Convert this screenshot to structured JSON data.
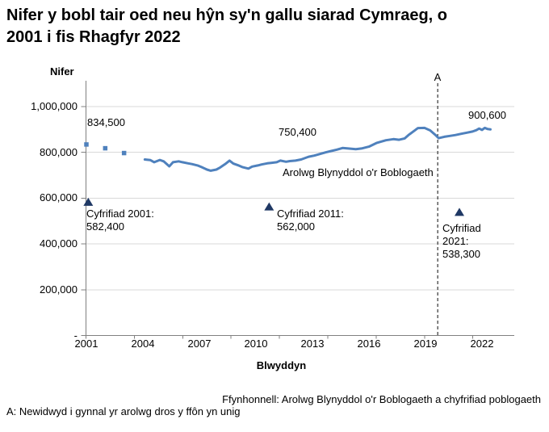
{
  "header": {
    "title_line1": "Nifer y bobl tair oed neu hŷn sy'n gallu siarad Cymraeg, o",
    "title_line2": "2001 i fis Rhagfyr 2022"
  },
  "chart_data": {
    "type": "line",
    "title": "Nifer y bobl tair oed neu hŷn sy'n gallu siarad Cymraeg, o 2001 i fis Rhagfyr 2022",
    "ylabel": "Nifer",
    "xlabel": "Blwyddyn",
    "grid": "horizontal",
    "legend_position": "none",
    "ylim": [
      0,
      1000000
    ],
    "xlim_years": [
      2001,
      2023
    ],
    "y_ticks": [
      {
        "value": 1000000,
        "label": "1,000,000"
      },
      {
        "value": 800000,
        "label": "800,000"
      },
      {
        "value": 600000,
        "label": "600,000"
      },
      {
        "value": 400000,
        "label": "400,000"
      },
      {
        "value": 200000,
        "label": "200,000"
      },
      {
        "value": 0,
        "label": "-"
      }
    ],
    "x_tick_labels": [
      "2001",
      "2004",
      "2007",
      "2010",
      "2013",
      "2016",
      "2019",
      "2022"
    ],
    "series": [
      {
        "name": "Arolwg Blynyddol o'r Boblogaeth",
        "color": "#4f81bd",
        "points": [
          [
            2004.6,
            769000
          ],
          [
            2004.9,
            766000
          ],
          [
            2005.1,
            757000
          ],
          [
            2005.4,
            767000
          ],
          [
            2005.6,
            761000
          ],
          [
            2005.9,
            739000
          ],
          [
            2006.1,
            757000
          ],
          [
            2006.4,
            761000
          ],
          [
            2006.6,
            757000
          ],
          [
            2006.9,
            752000
          ],
          [
            2007.1,
            749000
          ],
          [
            2007.4,
            743000
          ],
          [
            2007.6,
            736000
          ],
          [
            2007.9,
            725000
          ],
          [
            2008.1,
            720000
          ],
          [
            2008.4,
            725000
          ],
          [
            2008.6,
            734000
          ],
          [
            2008.9,
            751000
          ],
          [
            2009.1,
            764000
          ],
          [
            2009.3,
            751000
          ],
          [
            2009.6,
            742000
          ],
          [
            2009.8,
            735000
          ],
          [
            2010.1,
            729000
          ],
          [
            2010.3,
            738000
          ],
          [
            2010.6,
            743000
          ],
          [
            2010.8,
            747000
          ],
          [
            2011.1,
            752000
          ],
          [
            2011.3,
            754000
          ],
          [
            2011.6,
            757000
          ],
          [
            2011.8,
            764000
          ],
          [
            2012.1,
            759000
          ],
          [
            2012.3,
            762000
          ],
          [
            2012.6,
            764000
          ],
          [
            2012.9,
            769000
          ],
          [
            2013.3,
            781000
          ],
          [
            2013.6,
            786000
          ],
          [
            2013.9,
            793000
          ],
          [
            2014.2,
            800000
          ],
          [
            2014.5,
            806000
          ],
          [
            2014.8,
            812000
          ],
          [
            2015.1,
            819000
          ],
          [
            2015.4,
            817000
          ],
          [
            2015.8,
            814000
          ],
          [
            2016.1,
            817000
          ],
          [
            2016.5,
            825000
          ],
          [
            2016.9,
            841000
          ],
          [
            2017.4,
            853000
          ],
          [
            2017.8,
            858000
          ],
          [
            2018.1,
            855000
          ],
          [
            2018.4,
            861000
          ],
          [
            2018.6,
            876000
          ],
          [
            2018.9,
            894000
          ],
          [
            2019.1,
            906000
          ],
          [
            2019.45,
            907000
          ],
          [
            2019.75,
            896000
          ],
          [
            2020.0,
            878000
          ],
          [
            2020.2,
            862000
          ],
          [
            2020.5,
            868000
          ],
          [
            2020.8,
            872000
          ],
          [
            2021.1,
            876000
          ],
          [
            2021.4,
            881000
          ],
          [
            2021.7,
            886000
          ],
          [
            2022.0,
            891000
          ],
          [
            2022.2,
            897000
          ],
          [
            2022.35,
            904000
          ],
          [
            2022.5,
            898000
          ],
          [
            2022.65,
            907000
          ],
          [
            2022.8,
            902000
          ],
          [
            2022.95,
            900600
          ]
        ]
      }
    ],
    "early_annual_points": {
      "color": "#4f81bd",
      "points": [
        [
          2001.5,
          834500
        ],
        [
          2002.5,
          818000
        ],
        [
          2003.5,
          797000
        ]
      ]
    },
    "census_points": {
      "color": "#1f3864",
      "items": [
        {
          "year": 2001.6,
          "value": 582400,
          "label": "Cyfrifiad 2001: 582,400"
        },
        {
          "year": 2011.2,
          "value": 562000,
          "label": "Cyfrifiad 2011: 562,000"
        },
        {
          "year": 2021.3,
          "value": 538300,
          "label": "Cyfrifiad 2021: 538,300"
        }
      ]
    },
    "event_line": {
      "year": 2020.15,
      "label": "A"
    },
    "callouts": [
      {
        "id": "first-aps-value",
        "text": "834,500"
      },
      {
        "id": "mid-aps-value",
        "text": "750,400"
      },
      {
        "id": "last-aps-value",
        "text": "900,600"
      }
    ]
  },
  "colors": {
    "aps_line": "#4f81bd",
    "census_marker": "#1f3864",
    "gridline": "#d9d9d9",
    "axis": "#808080",
    "event_line": "#333333",
    "text": "#000000"
  },
  "footer": {
    "source": "Ffynhonnell: Arolwg Blynyddol o'r Boblogaeth a chyfrifiad poblogaeth",
    "note_a": "A: Newidwyd i gynnal yr arolwg dros y ffôn yn unig"
  }
}
